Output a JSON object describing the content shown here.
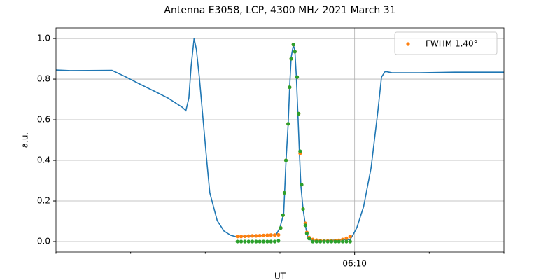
{
  "chart_data": {
    "type": "line",
    "title": "Antenna E3058, LCP, 4300 MHz 2021 March 31",
    "xlabel": "UT",
    "ylabel": "a.u.",
    "xlim": [
      366,
      372
    ],
    "ylim": [
      -0.0517,
      1.052
    ],
    "xticks": [
      {
        "value": 370,
        "label": "06:10"
      }
    ],
    "xminorticks": [
      366,
      367,
      368,
      369,
      371,
      372
    ],
    "yticks": [
      {
        "value": 0,
        "label": "0.0"
      },
      0.2,
      0.4,
      0.6,
      0.8,
      {
        "value": 1,
        "label": "1.0"
      }
    ],
    "grid": true,
    "legend": "upper right",
    "series": [
      {
        "type": "line",
        "color": "#1f77b4",
        "x": [
          366.0,
          366.19,
          366.75,
          366.94,
          367.12,
          367.31,
          367.5,
          367.69,
          367.74,
          367.78,
          367.81,
          367.85,
          367.88,
          367.92,
          367.97,
          368.02,
          368.06,
          368.16,
          368.25,
          368.34,
          368.41,
          368.95,
          369.0,
          369.05,
          369.08,
          369.11,
          369.13,
          369.15,
          369.18,
          369.2,
          369.22,
          369.24,
          369.26,
          369.28,
          369.31,
          369.34,
          369.36,
          369.39,
          369.47,
          369.94,
          369.98,
          370.03,
          370.12,
          370.22,
          370.31,
          370.36,
          370.41,
          370.5,
          370.87,
          371.34,
          371.81,
          372.0
        ],
        "values": [
          0.845,
          0.842,
          0.843,
          0.81,
          0.776,
          0.742,
          0.707,
          0.662,
          0.645,
          0.707,
          0.862,
          1.0,
          0.948,
          0.81,
          0.603,
          0.397,
          0.241,
          0.103,
          0.052,
          0.031,
          0.024,
          0.034,
          0.069,
          0.138,
          0.39,
          0.579,
          0.762,
          0.907,
          0.969,
          0.938,
          0.81,
          0.631,
          0.445,
          0.276,
          0.159,
          0.083,
          0.038,
          0.01,
          0.003,
          0.01,
          0.034,
          0.069,
          0.172,
          0.362,
          0.638,
          0.81,
          0.838,
          0.831,
          0.831,
          0.834,
          0.834,
          0.834
        ]
      },
      {
        "type": "scatter",
        "name": "FWHM 1.40°",
        "color": "#ff7f0e",
        "x": [
          368.43,
          368.48,
          368.53,
          368.58,
          368.63,
          368.68,
          368.73,
          368.78,
          368.83,
          368.88,
          368.93,
          368.98,
          369.01,
          369.04,
          369.06,
          369.08,
          369.11,
          369.13,
          369.15,
          369.18,
          369.2,
          369.23,
          369.25,
          369.27,
          369.29,
          369.31,
          369.34,
          369.36,
          369.39,
          369.44,
          369.49,
          369.54,
          369.59,
          369.64,
          369.69,
          369.74,
          369.79,
          369.84,
          369.89,
          369.94
        ],
        "values": [
          0.025,
          0.025,
          0.026,
          0.027,
          0.028,
          0.028,
          0.029,
          0.03,
          0.031,
          0.032,
          0.032,
          0.033,
          0.067,
          0.13,
          0.24,
          0.4,
          0.58,
          0.76,
          0.9,
          0.97,
          0.935,
          0.81,
          0.63,
          0.435,
          0.28,
          0.16,
          0.09,
          0.045,
          0.02,
          0.01,
          0.007,
          0.005,
          0.004,
          0.003,
          0.003,
          0.004,
          0.006,
          0.01,
          0.016,
          0.025
        ]
      },
      {
        "type": "scatter",
        "color": "#2ca02c",
        "x": [
          368.43,
          368.48,
          368.53,
          368.58,
          368.63,
          368.68,
          368.73,
          368.78,
          368.83,
          368.88,
          368.93,
          368.98,
          369.01,
          369.04,
          369.06,
          369.08,
          369.11,
          369.13,
          369.15,
          369.18,
          369.2,
          369.23,
          369.25,
          369.27,
          369.29,
          369.31,
          369.34,
          369.36,
          369.39,
          369.44,
          369.49,
          369.54,
          369.59,
          369.64,
          369.69,
          369.74,
          369.79,
          369.84,
          369.89,
          369.94
        ],
        "values": [
          0,
          0,
          0,
          0,
          0,
          0,
          0,
          0,
          0,
          0,
          0,
          0.003,
          0.067,
          0.13,
          0.24,
          0.4,
          0.58,
          0.76,
          0.9,
          0.97,
          0.935,
          0.81,
          0.63,
          0.445,
          0.28,
          0.16,
          0.08,
          0.04,
          0.015,
          0,
          0,
          0,
          0,
          0,
          0,
          0,
          0,
          0,
          0,
          0
        ]
      }
    ]
  }
}
